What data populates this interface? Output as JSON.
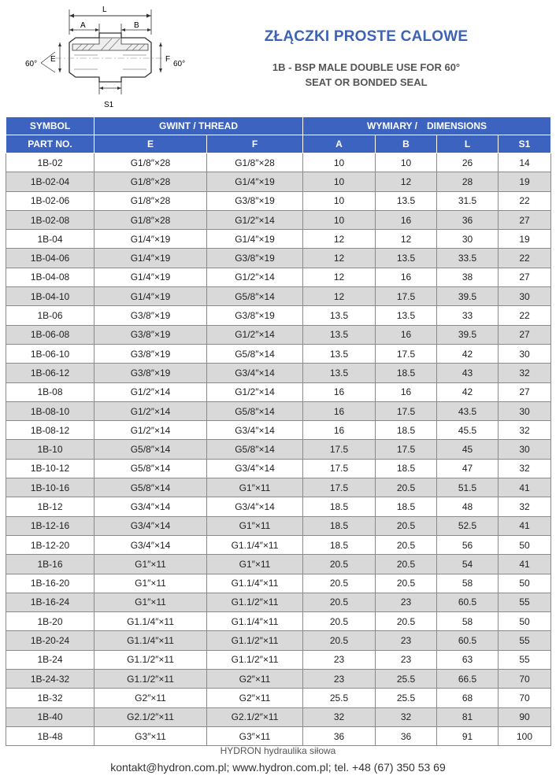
{
  "title": "ZŁĄCZKI PROSTE CALOWE",
  "subtitle_line1": "1B - BSP MALE DOUBLE USE FOR 60°",
  "subtitle_line2": "SEAT OR BONDED SEAL",
  "diagram": {
    "label_L": "L",
    "label_A": "A",
    "label_B": "B",
    "label_E": "E",
    "label_F": "F",
    "label_S1": "S1",
    "angle_left": "60°",
    "angle_right": "60°"
  },
  "header": {
    "symbol": "SYMBOL",
    "part_no": "PART NO.",
    "thread": "GWINT / THREAD",
    "dimensions_pl": "WYMIARY /",
    "dimensions_en": "DIMENSIONS",
    "col_E": "E",
    "col_F": "F",
    "col_A": "A",
    "col_B": "B",
    "col_L": "L",
    "col_S1": "S1"
  },
  "rows": [
    [
      "1B-02",
      "G1/8″×28",
      "G1/8″×28",
      "10",
      "10",
      "26",
      "14"
    ],
    [
      "1B-02-04",
      "G1/8″×28",
      "G1/4″×19",
      "10",
      "12",
      "28",
      "19"
    ],
    [
      "1B-02-06",
      "G1/8″×28",
      "G3/8″×19",
      "10",
      "13.5",
      "31.5",
      "22"
    ],
    [
      "1B-02-08",
      "G1/8″×28",
      "G1/2″×14",
      "10",
      "16",
      "36",
      "27"
    ],
    [
      "1B-04",
      "G1/4″×19",
      "G1/4″×19",
      "12",
      "12",
      "30",
      "19"
    ],
    [
      "1B-04-06",
      "G1/4″×19",
      "G3/8″×19",
      "12",
      "13.5",
      "33.5",
      "22"
    ],
    [
      "1B-04-08",
      "G1/4″×19",
      "G1/2″×14",
      "12",
      "16",
      "38",
      "27"
    ],
    [
      "1B-04-10",
      "G1/4″×19",
      "G5/8″×14",
      "12",
      "17.5",
      "39.5",
      "30"
    ],
    [
      "1B-06",
      "G3/8″×19",
      "G3/8″×19",
      "13.5",
      "13.5",
      "33",
      "22"
    ],
    [
      "1B-06-08",
      "G3/8″×19",
      "G1/2″×14",
      "13.5",
      "16",
      "39.5",
      "27"
    ],
    [
      "1B-06-10",
      "G3/8″×19",
      "G5/8″×14",
      "13.5",
      "17.5",
      "42",
      "30"
    ],
    [
      "1B-06-12",
      "G3/8″×19",
      "G3/4″×14",
      "13.5",
      "18.5",
      "43",
      "32"
    ],
    [
      "1B-08",
      "G1/2″×14",
      "G1/2″×14",
      "16",
      "16",
      "42",
      "27"
    ],
    [
      "1B-08-10",
      "G1/2″×14",
      "G5/8″×14",
      "16",
      "17.5",
      "43.5",
      "30"
    ],
    [
      "1B-08-12",
      "G1/2″×14",
      "G3/4″×14",
      "16",
      "18.5",
      "45.5",
      "32"
    ],
    [
      "1B-10",
      "G5/8″×14",
      "G5/8″×14",
      "17.5",
      "17.5",
      "45",
      "30"
    ],
    [
      "1B-10-12",
      "G5/8″×14",
      "G3/4″×14",
      "17.5",
      "18.5",
      "47",
      "32"
    ],
    [
      "1B-10-16",
      "G5/8″×14",
      "G1″×11",
      "17.5",
      "20.5",
      "51.5",
      "41"
    ],
    [
      "1B-12",
      "G3/4″×14",
      "G3/4″×14",
      "18.5",
      "18.5",
      "48",
      "32"
    ],
    [
      "1B-12-16",
      "G3/4″×14",
      "G1″×11",
      "18.5",
      "20.5",
      "52.5",
      "41"
    ],
    [
      "1B-12-20",
      "G3/4″×14",
      "G1.1/4″×11",
      "18.5",
      "20.5",
      "56",
      "50"
    ],
    [
      "1B-16",
      "G1″×11",
      "G1″×11",
      "20.5",
      "20.5",
      "54",
      "41"
    ],
    [
      "1B-16-20",
      "G1″×11",
      "G1.1/4″×11",
      "20.5",
      "20.5",
      "58",
      "50"
    ],
    [
      "1B-16-24",
      "G1″×11",
      "G1.1/2″×11",
      "20.5",
      "23",
      "60.5",
      "55"
    ],
    [
      "1B-20",
      "G1.1/4″×11",
      "G1.1/4″×11",
      "20.5",
      "20.5",
      "58",
      "50"
    ],
    [
      "1B-20-24",
      "G1.1/4″×11",
      "G1.1/2″×11",
      "20.5",
      "23",
      "60.5",
      "55"
    ],
    [
      "1B-24",
      "G1.1/2″×11",
      "G1.1/2″×11",
      "23",
      "23",
      "63",
      "55"
    ],
    [
      "1B-24-32",
      "G1.1/2″×11",
      "G2″×11",
      "23",
      "25.5",
      "66.5",
      "70"
    ],
    [
      "1B-32",
      "G2″×11",
      "G2″×11",
      "25.5",
      "25.5",
      "68",
      "70"
    ],
    [
      "1B-40",
      "G2.1/2″×11",
      "G2.1/2″×11",
      "32",
      "32",
      "81",
      "90"
    ],
    [
      "1B-48",
      "G3″×11",
      "G3″×11",
      "36",
      "36",
      "91",
      "100"
    ]
  ],
  "footer": {
    "company": "HYDRON hydraulika siłowa",
    "contact": "kontakt@hydron.com.pl; www.hydron.com.pl; tel. +48 (67) 350 53 69"
  },
  "colors": {
    "header_blue": "#3b63bf",
    "title_blue": "#3d63b5",
    "stripe_gray": "#d9d9d9"
  }
}
